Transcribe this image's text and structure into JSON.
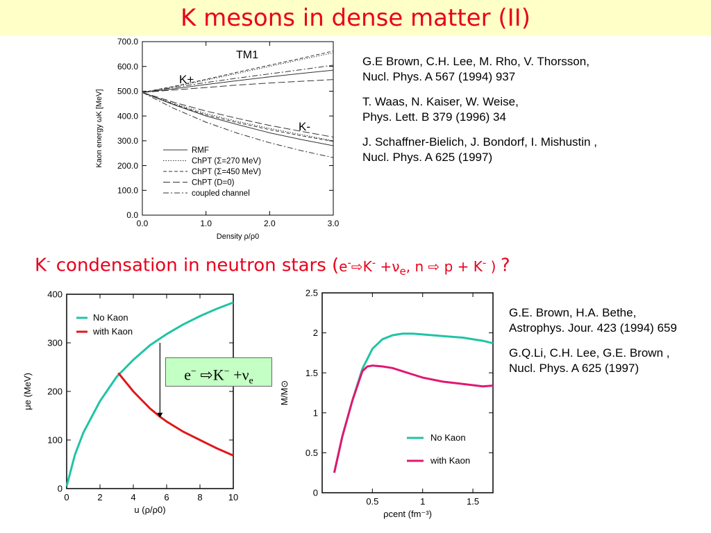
{
  "title": "K mesons in dense matter (II)",
  "refs_top": [
    {
      "authors": "G.E Brown, C.H. Lee, M. Rho, V. Thorsson,",
      "journal": "Nucl. Phys. A 567 (1994) 937"
    },
    {
      "authors": "T. Waas, N. Kaiser, W. Weise,",
      "journal": "Phys. Lett. B 379 (1996) 34"
    },
    {
      "authors": "J. Schaffner-Bielich, J. Bondorf, I. Mishustin ,",
      "journal": "Nucl. Phys. A 625 (1997)"
    }
  ],
  "refs_bottom": [
    {
      "authors": "G.E. Brown, H.A. Bethe,",
      "journal": "Astrophys. Jour. 423 (1994) 659"
    },
    {
      "authors": "G.Q.Li, C.H. Lee,  G.E. Brown ,",
      "journal": "Nucl. Phys. A 625 (1997)"
    }
  ],
  "subtitle": {
    "k": "K",
    "minus": "-",
    "text": " condensation in neutron stars (",
    "e": "e",
    "arrow": "⇨",
    "plus_nu": " +ν",
    "sub_e": "e",
    "comma_n": ",  n ",
    "p_plus_k": " p + K",
    "close": " ) ",
    "q": "?"
  },
  "box_label": {
    "e": "e",
    "minus1": "−",
    "arrow": " ⇨",
    "k": "K",
    "minus2": "−",
    "plus_nu": " +ν",
    "sub_e": "e"
  },
  "chart_data": [
    {
      "type": "line",
      "title": "TM1",
      "xlabel": "Density ρ/ρ0",
      "ylabel": "Kaon energy ωK [MeV]",
      "xlim": [
        0,
        3.0
      ],
      "ylim": [
        0,
        700
      ],
      "x_ticks": [
        "0.0",
        "1.0",
        "2.0",
        "3.0"
      ],
      "y_ticks": [
        "0.0",
        "100.0",
        "200.0",
        "300.0",
        "400.0",
        "500.0",
        "600.0",
        "700.0"
      ],
      "annotations": [
        "K+",
        "K-"
      ],
      "legend": [
        "RMF",
        "ChPT (Σ=270 MeV)",
        "ChPT (Σ=450 MeV)",
        "ChPT (D=0)",
        "coupled channel"
      ],
      "legend_placement": "bottom-left",
      "series": [
        {
          "name": "RMF",
          "dash": "solid",
          "x": [
            0,
            0.5,
            1,
            1.5,
            2,
            2.5,
            3
          ],
          "y": [
            495,
            510,
            527,
            543,
            558,
            572,
            585
          ]
        },
        {
          "name": "ChPT (Σ=270 MeV)",
          "dash": "dot",
          "x": [
            0,
            0.5,
            1,
            1.5,
            2,
            2.5,
            3
          ],
          "y": [
            495,
            518,
            545,
            572,
            600,
            628,
            655
          ]
        },
        {
          "name": "ChPT (Σ=450 MeV)",
          "dash": "dash",
          "x": [
            0,
            0.5,
            1,
            1.5,
            2,
            2.5,
            3
          ],
          "y": [
            495,
            520,
            548,
            577,
            605,
            633,
            662
          ]
        },
        {
          "name": "ChPT (D=0)",
          "dash": "longdash",
          "x": [
            0,
            0.5,
            1,
            1.5,
            2,
            2.5,
            3
          ],
          "y": [
            495,
            505,
            515,
            525,
            533,
            540,
            547
          ]
        },
        {
          "name": "coupled channel",
          "dash": "dashdot",
          "x": [
            0,
            0.5,
            1,
            1.5,
            2,
            2.5,
            3
          ],
          "y": [
            495,
            515,
            535,
            553,
            570,
            587,
            605
          ]
        },
        {
          "name": "RMF",
          "dash": "solid",
          "x": [
            0,
            0.5,
            1,
            1.5,
            2,
            2.5,
            3
          ],
          "y": [
            495,
            445,
            400,
            365,
            332,
            305,
            280
          ]
        },
        {
          "name": "ChPT (Σ=270 MeV)",
          "dash": "dot",
          "x": [
            0,
            0.5,
            1,
            1.5,
            2,
            2.5,
            3
          ],
          "y": [
            495,
            450,
            410,
            378,
            350,
            325,
            300
          ]
        },
        {
          "name": "ChPT (Σ=450 MeV)",
          "dash": "dash",
          "x": [
            0,
            0.5,
            1,
            1.5,
            2,
            2.5,
            3
          ],
          "y": [
            495,
            447,
            405,
            373,
            345,
            320,
            298
          ]
        },
        {
          "name": "ChPT (D=0)",
          "dash": "longdash",
          "x": [
            0,
            0.5,
            1,
            1.5,
            2,
            2.5,
            3
          ],
          "y": [
            495,
            455,
            420,
            390,
            362,
            338,
            315
          ]
        },
        {
          "name": "coupled channel",
          "dash": "dashdot",
          "x": [
            0,
            0.5,
            1,
            1.5,
            2,
            2.5,
            3
          ],
          "y": [
            495,
            430,
            375,
            330,
            292,
            260,
            232
          ]
        }
      ]
    },
    {
      "type": "line",
      "xlabel": "u  (ρ/ρ0)",
      "ylabel": "μe (MeV)",
      "xlim": [
        0,
        10
      ],
      "ylim": [
        0,
        400
      ],
      "x_ticks": [
        "0",
        "2",
        "4",
        "6",
        "8",
        "10"
      ],
      "y_ticks": [
        "0",
        "100",
        "200",
        "300",
        "400"
      ],
      "legend_placement": "top-left",
      "series": [
        {
          "name": "No Kaon",
          "color": "#1fc4a4",
          "x": [
            0,
            0.5,
            1,
            2,
            3,
            4,
            5,
            6,
            7,
            8,
            9,
            10
          ],
          "y": [
            5,
            70,
            115,
            180,
            230,
            265,
            295,
            318,
            338,
            355,
            370,
            383
          ]
        },
        {
          "name": "with Kaon",
          "color": "#e01818",
          "x": [
            3.1,
            4,
            5,
            5.6,
            6,
            7,
            8,
            9,
            10
          ],
          "y": [
            238,
            200,
            165,
            148,
            138,
            117,
            100,
            83,
            68
          ]
        }
      ]
    },
    {
      "type": "line",
      "xlabel": "ρcent (fm⁻³)",
      "ylabel": "M/M⊙",
      "xlim": [
        0,
        1.7
      ],
      "ylim": [
        0,
        2.5
      ],
      "x_ticks": [
        "0.5",
        "1",
        "1.5"
      ],
      "y_ticks": [
        "0",
        "0.5",
        "1",
        "1.5",
        "2",
        "2.5"
      ],
      "legend_placement": "bottom-right",
      "series": [
        {
          "name": "No Kaon",
          "color": "#1fc4a4",
          "x": [
            0.12,
            0.2,
            0.3,
            0.4,
            0.5,
            0.6,
            0.7,
            0.8,
            0.9,
            1.0,
            1.2,
            1.4,
            1.6,
            1.7
          ],
          "y": [
            0.25,
            0.7,
            1.15,
            1.55,
            1.8,
            1.92,
            1.97,
            1.99,
            1.99,
            1.98,
            1.96,
            1.94,
            1.9,
            1.87
          ]
        },
        {
          "name": "with Kaon",
          "color": "#e01870",
          "x": [
            0.12,
            0.2,
            0.3,
            0.4,
            0.45,
            0.5,
            0.6,
            0.7,
            0.8,
            0.9,
            1.0,
            1.2,
            1.4,
            1.6,
            1.7
          ],
          "y": [
            0.25,
            0.7,
            1.15,
            1.52,
            1.58,
            1.59,
            1.58,
            1.56,
            1.52,
            1.48,
            1.44,
            1.39,
            1.36,
            1.33,
            1.34
          ]
        }
      ]
    }
  ]
}
